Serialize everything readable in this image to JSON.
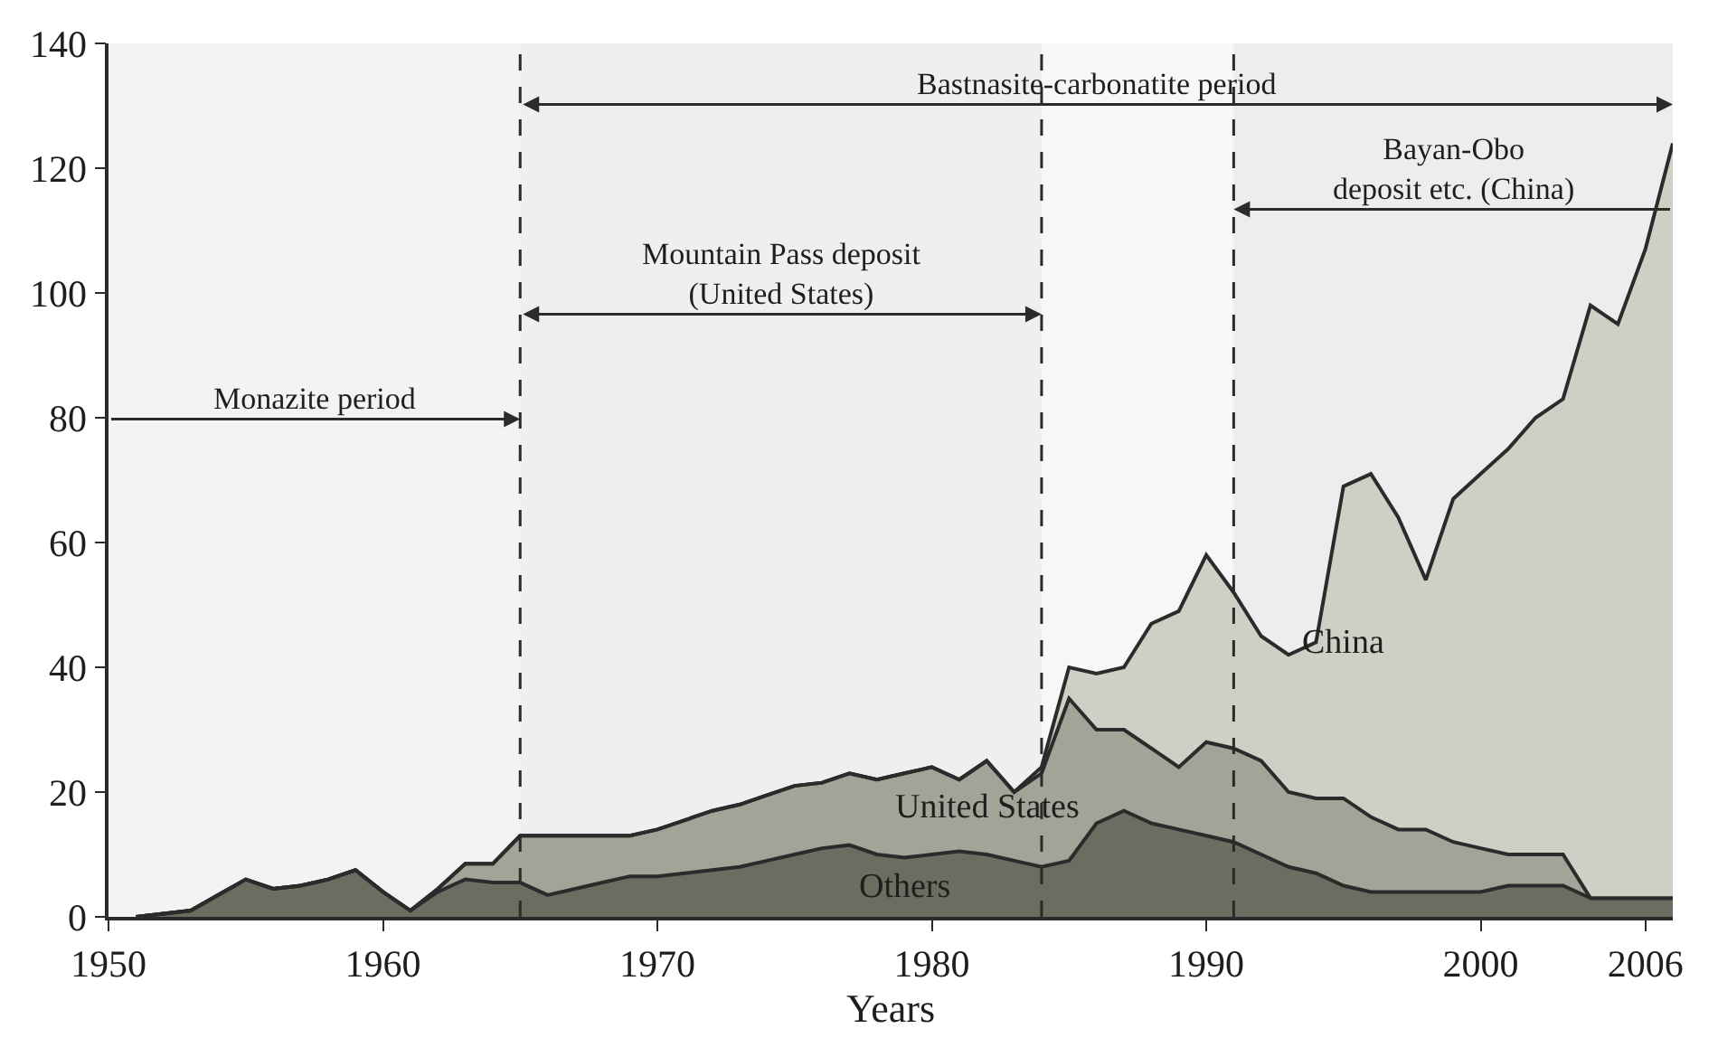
{
  "chart_data": {
    "type": "area",
    "stacked": true,
    "xlabel": "Years",
    "x": [
      1951,
      1952,
      1953,
      1954,
      1955,
      1956,
      1957,
      1958,
      1959,
      1960,
      1961,
      1962,
      1963,
      1964,
      1965,
      1966,
      1967,
      1968,
      1969,
      1970,
      1971,
      1972,
      1973,
      1974,
      1975,
      1976,
      1977,
      1978,
      1979,
      1980,
      1981,
      1982,
      1983,
      1984,
      1985,
      1986,
      1987,
      1988,
      1989,
      1990,
      1991,
      1992,
      1993,
      1994,
      1995,
      1996,
      1997,
      1998,
      1999,
      2000,
      2001,
      2002,
      2003,
      2004,
      2005,
      2006,
      2007
    ],
    "series": [
      {
        "name": "Others",
        "color": "#6b6d60",
        "values": [
          0,
          0.5,
          1,
          3.5,
          6,
          4.5,
          5,
          6,
          7.5,
          4,
          1,
          4,
          6,
          5.5,
          5.5,
          3.5,
          4.5,
          5.5,
          6.5,
          6.5,
          7,
          7.5,
          8,
          9,
          10,
          11,
          11.5,
          10,
          9.5,
          10,
          10.5,
          10,
          9,
          8,
          9,
          15,
          17,
          15,
          14,
          13,
          12,
          10,
          8,
          7,
          5,
          4,
          4,
          4,
          4,
          4,
          5,
          5,
          5,
          3,
          3,
          3,
          3
        ]
      },
      {
        "name": "United States",
        "color": "#a3a397",
        "values": [
          0,
          0,
          0,
          0,
          0,
          0,
          0,
          0,
          0,
          0,
          0,
          0.5,
          2.5,
          3,
          7.5,
          9.5,
          8.5,
          7.5,
          6.5,
          7.5,
          8.5,
          9.5,
          10,
          10.5,
          11,
          10.5,
          11.5,
          12,
          13.5,
          14,
          11.5,
          15,
          11,
          15,
          26,
          15,
          13,
          12,
          10,
          15,
          15,
          15,
          12,
          12,
          14,
          12,
          10,
          10,
          8,
          7,
          5,
          5,
          5,
          0,
          0,
          0,
          0
        ]
      },
      {
        "name": "China",
        "color": "#cfcfc5",
        "values": [
          0,
          0,
          0,
          0,
          0,
          0,
          0,
          0,
          0,
          0,
          0,
          0,
          0,
          0,
          0,
          0,
          0,
          0,
          0,
          0,
          0,
          0,
          0,
          0,
          0,
          0,
          0,
          0,
          0,
          0,
          0,
          0,
          0,
          1,
          5,
          9,
          10,
          20,
          25,
          30,
          25,
          20,
          22,
          25,
          50,
          55,
          50,
          40,
          55,
          60,
          65,
          70,
          73,
          95,
          92,
          104,
          121
        ]
      }
    ],
    "xlim": [
      1950,
      2007
    ],
    "xticks": [
      1950,
      1960,
      1970,
      1980,
      1990,
      2000,
      2006
    ],
    "ylim": [
      0,
      140
    ],
    "yticks": [
      0,
      20,
      40,
      60,
      80,
      100,
      120,
      140
    ],
    "grid": false,
    "legend": false,
    "ref_lines": [
      {
        "axis": "x",
        "value": 1965,
        "line_style": "dashed"
      },
      {
        "axis": "x",
        "value": 1984,
        "line_style": "dashed"
      },
      {
        "axis": "x",
        "value": 1991,
        "line_style": "dashed"
      }
    ],
    "bands": [
      {
        "axis": "x",
        "from": 1965,
        "to": 2007,
        "label": "Bastnasite-carbonatite period",
        "color": "#f7f7f7"
      },
      {
        "axis": "x",
        "from": 2007,
        "to": 1991,
        "label": "Bayan-Obo\ndeposit etc. (China)",
        "color": "#ededed"
      },
      {
        "axis": "x",
        "from": 1965,
        "to": 1984,
        "label": "Mountain Pass deposit\n(United States)",
        "color": "#efefef"
      },
      {
        "axis": "x",
        "from": 1950,
        "to": 1965,
        "label": "Monazite period",
        "color": "#f3f3f3"
      }
    ]
  }
}
